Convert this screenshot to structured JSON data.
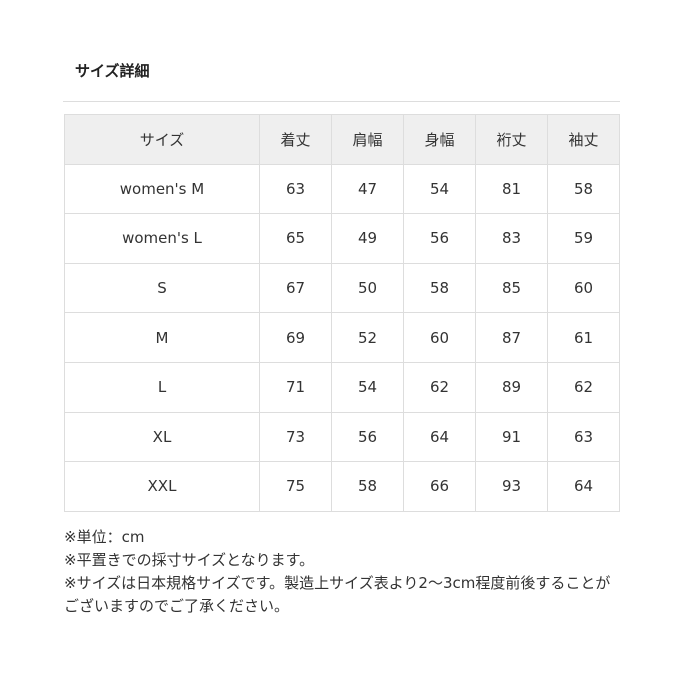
{
  "title": "サイズ詳細",
  "table": {
    "headers": [
      "サイズ",
      "着丈",
      "肩幅",
      "身幅",
      "裄丈",
      "袖丈"
    ],
    "rows": [
      [
        "women's M",
        "63",
        "47",
        "54",
        "81",
        "58"
      ],
      [
        "women's L",
        "65",
        "49",
        "56",
        "83",
        "59"
      ],
      [
        "S",
        "67",
        "50",
        "58",
        "85",
        "60"
      ],
      [
        "M",
        "69",
        "52",
        "60",
        "87",
        "61"
      ],
      [
        "L",
        "71",
        "54",
        "62",
        "89",
        "62"
      ],
      [
        "XL",
        "73",
        "56",
        "64",
        "91",
        "63"
      ],
      [
        "XXL",
        "75",
        "58",
        "66",
        "93",
        "64"
      ]
    ]
  },
  "notes": [
    "※単位：cm",
    "※平置きでの採寸サイズとなります。",
    "※サイズは日本規格サイズです。製造上サイズ表より2〜3cm程度前後することがございますのでご了承ください。"
  ]
}
